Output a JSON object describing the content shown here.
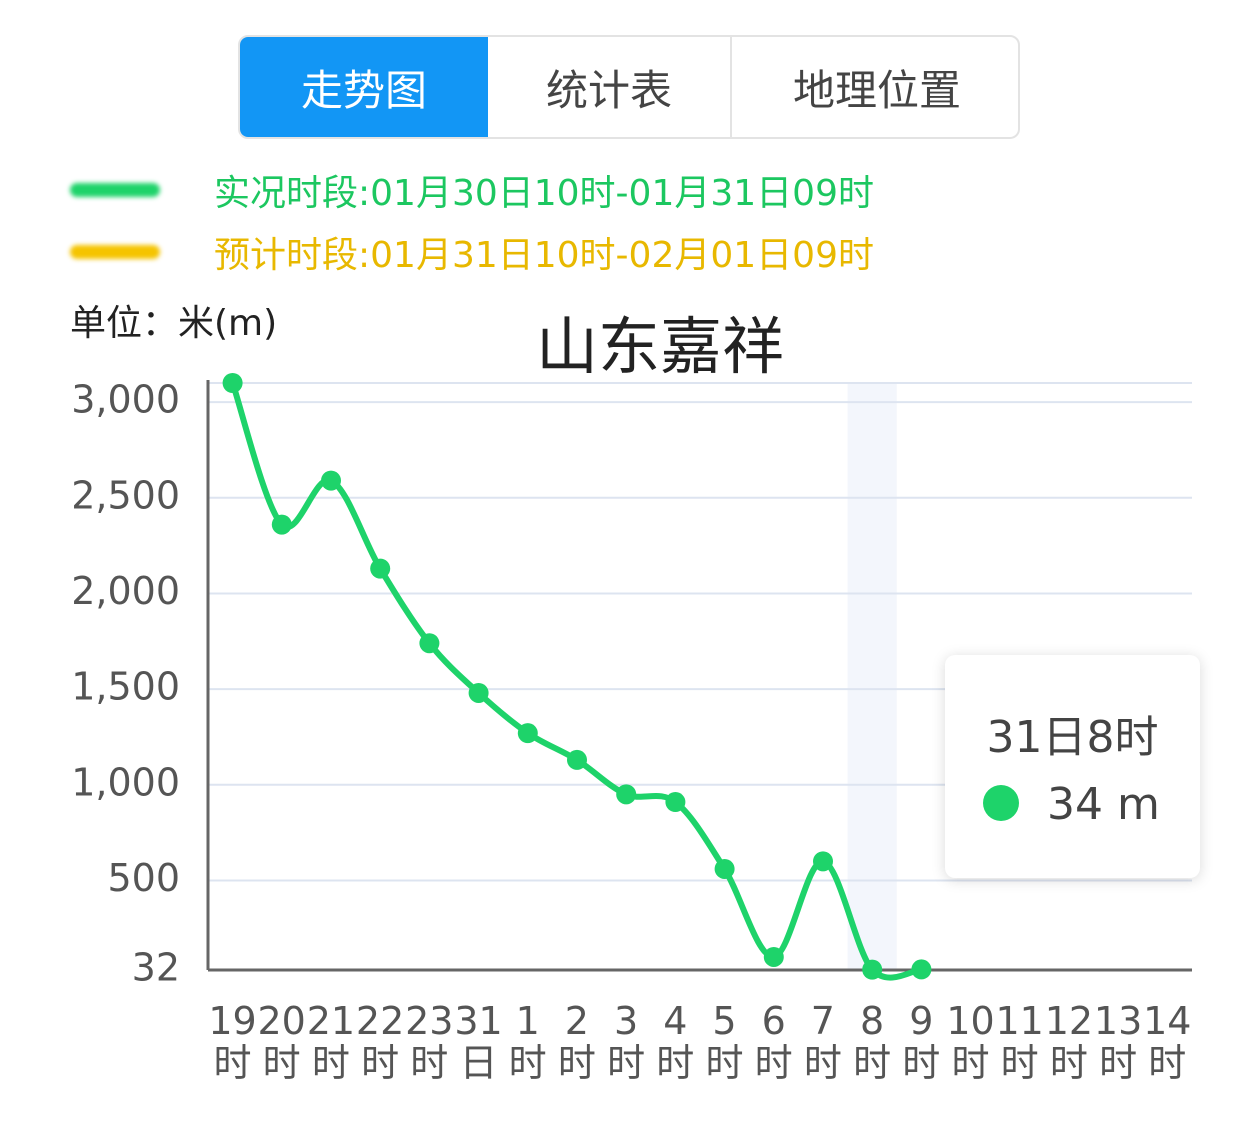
{
  "tabs": [
    "走势图",
    "统计表",
    "地理位置"
  ],
  "chart_data": {
    "type": "line",
    "title": "山东嘉祥",
    "unit_label": "单位：米(m)",
    "legend": [
      {
        "label": "实况时段:01月30日10时-01月31日09时",
        "color": "#1ed36a",
        "text_color": "#1cc760"
      },
      {
        "label": "预计时段:01月31日10时-02月01日09时",
        "color": "#f5c400",
        "text_color": "#e8b800"
      }
    ],
    "categories": [
      "19时",
      "20时",
      "21时",
      "22时",
      "23时",
      "31日",
      "1时",
      "2时",
      "3时",
      "4时",
      "5时",
      "6时",
      "7时",
      "8时",
      "9时",
      "10时",
      "11时",
      "12时",
      "13时",
      "14时"
    ],
    "series": [
      {
        "color": "#1ed36a",
        "values": [
          3100,
          2360,
          2590,
          2130,
          1740,
          1480,
          1270,
          1130,
          950,
          910,
          560,
          100,
          600,
          34,
          35,
          null,
          null,
          null,
          null,
          null
        ]
      }
    ],
    "ylim": [
      32,
      3100
    ],
    "yticks": [
      32,
      {
        "value": 500,
        "label": "500"
      },
      {
        "value": 1000,
        "label": "1,000"
      },
      {
        "value": 1500,
        "label": "1,500"
      },
      {
        "value": 2000,
        "label": "2,000"
      },
      {
        "value": 2500,
        "label": "2,500"
      },
      {
        "value": 3000,
        "label": "3,000"
      }
    ],
    "grid": true,
    "tooltip": {
      "label": "31日8时",
      "value_label": "34 m",
      "index": 13
    }
  }
}
